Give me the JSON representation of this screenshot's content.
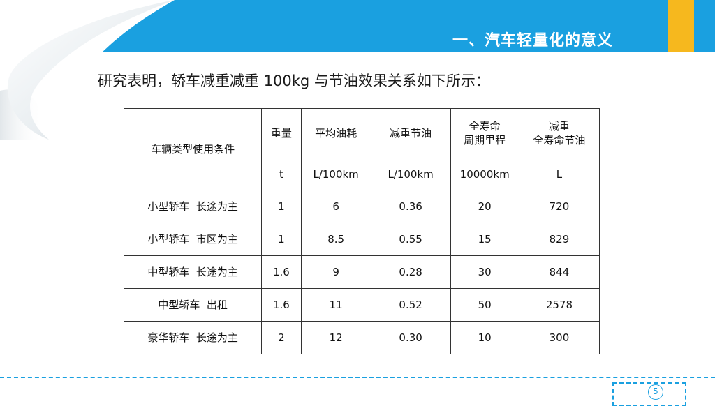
{
  "header": {
    "title": "一、汽车轻量化的意义",
    "bar_color": "#1aa0e0",
    "accent_color": "#f6b81e"
  },
  "intro_text": "研究表明，轿车减重减重 100kg 与节油效果关系如下所示：",
  "table": {
    "header_row1": [
      "车辆类型使用条件",
      "重量",
      "平均油耗",
      "减重节油",
      "全寿命\n周期里程",
      "减重\n全寿命节油"
    ],
    "header_row2": [
      "t",
      "L/100km",
      "L/100km",
      "10000km",
      "L"
    ],
    "rows": [
      [
        "小型轿车  长途为主",
        "1",
        "6",
        "0.36",
        "20",
        "720"
      ],
      [
        "小型轿车  市区为主",
        "1",
        "8.5",
        "0.55",
        "15",
        "829"
      ],
      [
        "中型轿车  长途为主",
        "1.6",
        "9",
        "0.28",
        "30",
        "844"
      ],
      [
        "中型轿车  出租",
        "1.6",
        "11",
        "0.52",
        "50",
        "2578"
      ],
      [
        "豪华轿车  长途为主",
        "2",
        "12",
        "0.30",
        "10",
        "300"
      ]
    ]
  },
  "footer": {
    "page_number": "5"
  }
}
